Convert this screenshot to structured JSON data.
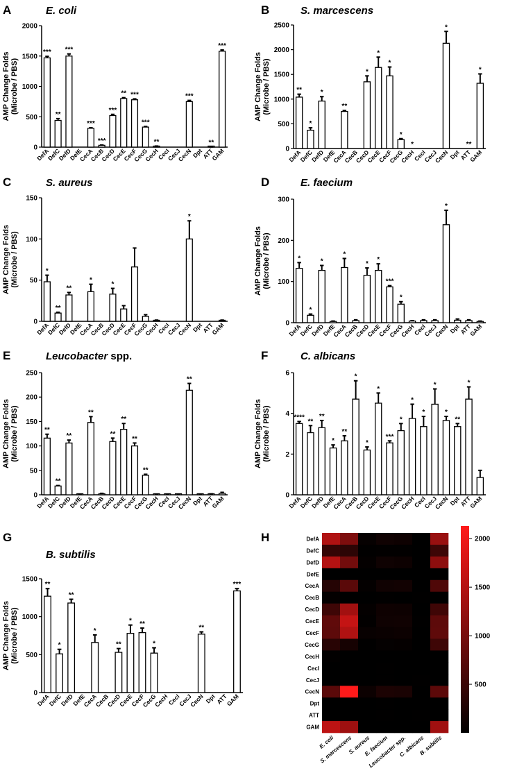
{
  "chart_data": [
    {
      "type": "bar",
      "panel_label": "A",
      "title": "E. coli",
      "title_suffix": "",
      "ylabel": [
        "AMP Change Folds",
        "(Microbe / PBS)"
      ],
      "ylim": [
        0,
        2000
      ],
      "yticks": [
        "0",
        "500",
        "1000",
        "1500",
        "2000"
      ],
      "categories": [
        "DefA",
        "DefC",
        "DefD",
        "DefE",
        "CecA",
        "CecB",
        "CecD",
        "CecE",
        "CecF",
        "CecG",
        "CecH",
        "CecI",
        "CecJ",
        "CecN",
        "Dpt",
        "ATT",
        "GAM"
      ],
      "values": [
        1470,
        440,
        1500,
        0,
        310,
        30,
        520,
        800,
        780,
        330,
        15,
        0,
        0,
        750,
        0,
        2,
        1580
      ],
      "errors": [
        25,
        30,
        35,
        0,
        10,
        5,
        20,
        15,
        15,
        10,
        3,
        0,
        0,
        20,
        0,
        1,
        20
      ],
      "significance": [
        "***",
        "**",
        "***",
        "",
        "***",
        "***",
        "***",
        "**",
        "***",
        "***",
        "**",
        "",
        "",
        "***",
        "",
        "**",
        "***"
      ]
    },
    {
      "type": "bar",
      "panel_label": "B",
      "title": "S. marcescens",
      "title_suffix": "",
      "ylabel": [
        "AMP Change Folds",
        "(Microbe / PBS)"
      ],
      "ylim": [
        0,
        2500
      ],
      "yticks": [
        "0",
        "500",
        "1000",
        "1500",
        "2000",
        "2500"
      ],
      "categories": [
        "DefA",
        "DefC",
        "DefD",
        "DefE",
        "CecA",
        "CecB",
        "CecD",
        "CecE",
        "CecF",
        "CecG",
        "CecH",
        "CecI",
        "CecJ",
        "CecN",
        "Dpt",
        "ATT",
        "GAM"
      ],
      "values": [
        1040,
        370,
        960,
        0,
        750,
        0,
        1350,
        1640,
        1470,
        180,
        0,
        0,
        0,
        2130,
        0,
        0,
        1320
      ],
      "errors": [
        60,
        50,
        90,
        0,
        20,
        0,
        120,
        210,
        180,
        20,
        0,
        0,
        0,
        240,
        0,
        0,
        190
      ],
      "significance": [
        "**",
        "*",
        "*",
        "",
        "**",
        "",
        "*",
        "*",
        "*",
        "*",
        "*",
        "",
        "",
        "*",
        "",
        "**",
        "*"
      ]
    },
    {
      "type": "bar",
      "panel_label": "C",
      "title": "S. aureus",
      "title_suffix": "",
      "ylabel": [
        "AMP Change Folds",
        "(Microbe / PBS)"
      ],
      "ylim": [
        0,
        150
      ],
      "yticks": [
        "0",
        "50",
        "100",
        "150"
      ],
      "categories": [
        "DefA",
        "DefC",
        "DefD",
        "DefE",
        "CecA",
        "CecB",
        "CecD",
        "CecE",
        "CecF",
        "CecG",
        "CecH",
        "CecI",
        "CecJ",
        "CecN",
        "Dpt",
        "ATT",
        "GAM"
      ],
      "values": [
        48,
        10,
        32,
        0,
        36,
        0,
        33,
        15,
        66,
        6,
        1,
        0,
        0,
        100,
        0,
        0,
        1
      ],
      "errors": [
        8,
        1,
        3,
        0,
        9,
        0,
        7,
        4,
        23,
        2,
        0.5,
        0,
        0,
        22,
        0,
        0,
        0.5
      ],
      "significance": [
        "*",
        "**",
        "**",
        "",
        "*",
        "",
        "*",
        "",
        "",
        "",
        "",
        "",
        "",
        "*",
        "",
        "",
        ""
      ]
    },
    {
      "type": "bar",
      "panel_label": "D",
      "title": "E. faecium",
      "title_suffix": "",
      "ylabel": [
        "AMP Change Folds",
        "(Microbe / PBS)"
      ],
      "ylim": [
        0,
        300
      ],
      "yticks": [
        "0",
        "100",
        "200",
        "300"
      ],
      "categories": [
        "DefA",
        "DefC",
        "DefD",
        "DefE",
        "CecA",
        "CecB",
        "CecD",
        "CecE",
        "CecF",
        "CecG",
        "CecH",
        "CecI",
        "CecJ",
        "CecN",
        "Dpt",
        "ATT",
        "GAM"
      ],
      "values": [
        132,
        18,
        127,
        3,
        134,
        5,
        115,
        127,
        87,
        45,
        4,
        5,
        5,
        238,
        6,
        5,
        3
      ],
      "errors": [
        14,
        3,
        12,
        1,
        22,
        2,
        18,
        16,
        3,
        6,
        1,
        2,
        2,
        35,
        3,
        2,
        1
      ],
      "significance": [
        "*",
        "*",
        "*",
        "",
        "*",
        "",
        "*",
        "*",
        "***",
        "*",
        "",
        "",
        "",
        "*",
        "",
        "",
        ""
      ]
    },
    {
      "type": "bar",
      "panel_label": "E",
      "title": "Leucobacter",
      "title_suffix": "spp.",
      "ylabel": [
        "AMP Change Folds",
        "(Microbe / PBS)"
      ],
      "ylim": [
        0,
        250
      ],
      "yticks": [
        "0",
        "50",
        "100",
        "150",
        "200",
        "250"
      ],
      "categories": [
        "DefA",
        "DefC",
        "DefD",
        "DefE",
        "CecA",
        "CecB",
        "CecD",
        "CecE",
        "CecF",
        "CecG",
        "CecH",
        "CecI",
        "CecJ",
        "CecN",
        "Dpt",
        "ATT",
        "GAM"
      ],
      "values": [
        116,
        18,
        106,
        1,
        148,
        2,
        109,
        134,
        100,
        40,
        1,
        1,
        1,
        214,
        1,
        1,
        3
      ],
      "errors": [
        8,
        1,
        6,
        0.5,
        12,
        1,
        7,
        12,
        6,
        2,
        0.5,
        0.5,
        0.5,
        14,
        0.5,
        1,
        2
      ],
      "significance": [
        "**",
        "**",
        "**",
        "",
        "**",
        "",
        "**",
        "**",
        "**",
        "**",
        "",
        "",
        "",
        "**",
        "",
        "",
        ""
      ]
    },
    {
      "type": "bar",
      "panel_label": "F",
      "title": "C. albicans",
      "title_suffix": "",
      "ylabel": [
        "AMP Change Folds",
        "(Microbe / PBS)"
      ],
      "ylim": [
        0,
        6
      ],
      "yticks": [
        "0",
        "2",
        "4",
        "6"
      ],
      "categories": [
        "DefA",
        "DefC",
        "DefD",
        "DefE",
        "CecA",
        "CecB",
        "CecD",
        "CecE",
        "CecF",
        "CecG",
        "CecH",
        "CecI",
        "CecJ",
        "CecN",
        "Dpt",
        "ATT",
        "GAM"
      ],
      "values": [
        3.5,
        3.05,
        3.3,
        2.3,
        2.65,
        4.7,
        2.2,
        4.5,
        2.55,
        3.15,
        3.75,
        3.35,
        4.45,
        3.65,
        3.35,
        4.7,
        0.85
      ],
      "errors": [
        0.1,
        0.35,
        0.35,
        0.15,
        0.25,
        0.9,
        0.15,
        0.5,
        0.1,
        0.35,
        0.7,
        0.5,
        0.75,
        0.2,
        0.15,
        0.6,
        0.35
      ],
      "significance": [
        "****",
        "**",
        "**",
        "*",
        "**",
        "*",
        "*",
        "*",
        "***",
        "*",
        "*",
        "*",
        "*",
        "*",
        "**",
        "*",
        ""
      ]
    },
    {
      "type": "bar",
      "panel_label": "G",
      "title": "B. subtilis",
      "title_suffix": "",
      "ylabel": [
        "AMP Change Folds",
        "(Microbe / PBS)"
      ],
      "ylim": [
        0,
        1500
      ],
      "yticks": [
        "0",
        "500",
        "1000",
        "1500"
      ],
      "categories": [
        "DefA",
        "DefC",
        "DefD",
        "DefE",
        "CecA",
        "CecB",
        "CecD",
        "CecE",
        "CecF",
        "CecG",
        "CecH",
        "CecI",
        "CecJ",
        "CecN",
        "Dpt",
        "ATT",
        "GAM"
      ],
      "values": [
        1270,
        510,
        1180,
        0,
        660,
        0,
        530,
        780,
        790,
        520,
        0,
        0,
        0,
        770,
        0,
        0,
        1340
      ],
      "errors": [
        100,
        60,
        50,
        0,
        100,
        0,
        50,
        110,
        60,
        70,
        0,
        0,
        0,
        30,
        0,
        0,
        30
      ],
      "significance": [
        "**",
        "*",
        "**",
        "",
        "*",
        "",
        "**",
        "*",
        "**",
        "*",
        "",
        "",
        "",
        "**",
        "",
        "",
        "***"
      ]
    },
    {
      "type": "heatmap",
      "panel_label": "H",
      "rows": [
        "DefA",
        "DefC",
        "DefD",
        "DefE",
        "CecA",
        "CecB",
        "CecD",
        "CecE",
        "CecF",
        "CecG",
        "CecH",
        "CecI",
        "CecJ",
        "CecN",
        "Dpt",
        "ATT",
        "GAM"
      ],
      "columns": [
        "E. coli",
        "S. marcescens",
        "S. aureus",
        "E. faecium",
        "Leucobacter spp.",
        "C. albicans",
        "B. subtilis"
      ],
      "values": [
        [
          1470,
          1040,
          48,
          132,
          116,
          3.5,
          1270
        ],
        [
          440,
          370,
          10,
          18,
          18,
          3.05,
          510
        ],
        [
          1500,
          960,
          32,
          127,
          106,
          3.3,
          1180
        ],
        [
          0,
          0,
          0,
          3,
          1,
          2.3,
          0
        ],
        [
          310,
          750,
          36,
          134,
          148,
          2.65,
          660
        ],
        [
          30,
          0,
          0,
          5,
          2,
          4.7,
          0
        ],
        [
          520,
          1350,
          33,
          115,
          109,
          2.2,
          530
        ],
        [
          800,
          1640,
          15,
          127,
          134,
          4.5,
          780
        ],
        [
          780,
          1470,
          66,
          87,
          100,
          2.55,
          790
        ],
        [
          330,
          180,
          6,
          45,
          40,
          3.15,
          520
        ],
        [
          15,
          0,
          1,
          4,
          1,
          3.75,
          0
        ],
        [
          0,
          0,
          0,
          5,
          1,
          3.35,
          0
        ],
        [
          0,
          0,
          0,
          5,
          1,
          4.45,
          0
        ],
        [
          750,
          2130,
          100,
          238,
          214,
          3.65,
          770
        ],
        [
          0,
          0,
          0,
          6,
          1,
          3.35,
          0
        ],
        [
          2,
          0,
          0,
          5,
          1,
          4.7,
          0
        ],
        [
          1580,
          1320,
          1,
          3,
          3,
          0.85,
          1340
        ]
      ],
      "colorbar_range": [
        0,
        2130
      ],
      "colorbar_ticks": [
        {
          "label": "2000",
          "value": 2000
        },
        {
          "label": "1500",
          "value": 1500
        },
        {
          "label": "1000",
          "value": 1000
        },
        {
          "label": "500",
          "value": 500
        }
      ],
      "colors": {
        "low": "#000000",
        "high": "#ff1a1a"
      }
    }
  ]
}
